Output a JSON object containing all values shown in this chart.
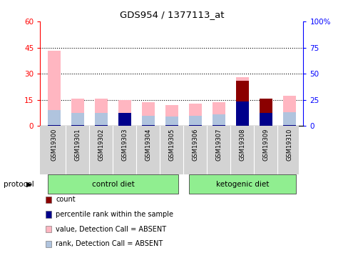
{
  "title": "GDS954 / 1377113_at",
  "samples": [
    "GSM19300",
    "GSM19301",
    "GSM19302",
    "GSM19303",
    "GSM19304",
    "GSM19305",
    "GSM19306",
    "GSM19307",
    "GSM19308",
    "GSM19309",
    "GSM19310"
  ],
  "value_absent": [
    43.0,
    15.5,
    15.5,
    15.0,
    13.5,
    12.0,
    13.0,
    13.5,
    28.0,
    15.5,
    17.5
  ],
  "rank_absent": [
    9.0,
    7.5,
    7.5,
    7.0,
    6.0,
    5.5,
    6.0,
    6.5,
    8.5,
    7.5,
    8.0
  ],
  "count": [
    0.5,
    0.5,
    0.5,
    5.0,
    0.5,
    0.5,
    0.5,
    0.5,
    26.0,
    15.5,
    0.5
  ],
  "percentile_rank": [
    0.5,
    0.5,
    0.5,
    7.5,
    0.5,
    0.5,
    0.5,
    0.5,
    14.0,
    7.5,
    0.5
  ],
  "ylim_left": [
    0,
    60
  ],
  "ylim_right": [
    0,
    100
  ],
  "yticks_left": [
    0,
    15,
    30,
    45,
    60
  ],
  "yticks_right": [
    0,
    25,
    50,
    75,
    100
  ],
  "ytick_labels_right": [
    "0",
    "25",
    "50",
    "75",
    "100%"
  ],
  "color_value_absent": "#ffb6c1",
  "color_rank_absent": "#b0c4de",
  "color_count": "#8b0000",
  "color_percentile": "#00008b",
  "bar_width": 0.55,
  "background_label": "#d3d3d3",
  "color_group": "#90ee90",
  "protocol_label": "protocol",
  "legend_items": [
    {
      "label": "count",
      "color": "#8b0000"
    },
    {
      "label": "percentile rank within the sample",
      "color": "#00008b"
    },
    {
      "label": "value, Detection Call = ABSENT",
      "color": "#ffb6c1"
    },
    {
      "label": "rank, Detection Call = ABSENT",
      "color": "#b0c4de"
    }
  ],
  "control_diet_range": [
    0,
    5
  ],
  "ketogenic_diet_range": [
    6,
    10
  ]
}
